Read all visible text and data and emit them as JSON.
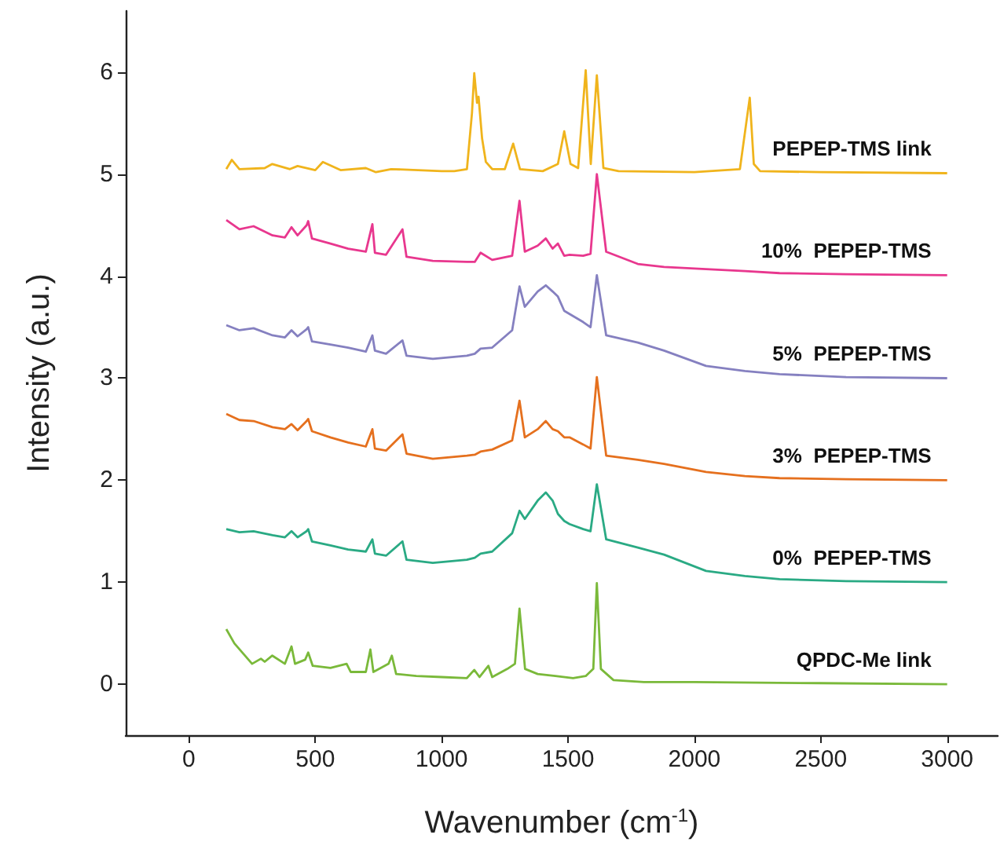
{
  "chart_data": {
    "type": "line",
    "xlabel": "Wavenumber (cm$^{-1}$)",
    "ylabel": "Intensity (a.u.)",
    "xlim": [
      -250,
      3200
    ],
    "xticks": [
      0,
      500,
      1000,
      1500,
      2000,
      2500,
      3000
    ],
    "ylim": [
      -0.5,
      6.6
    ],
    "yticks": [
      0,
      1,
      2,
      3,
      4,
      5,
      6
    ],
    "grid": false,
    "legend": false,
    "marker": "none",
    "series": [
      {
        "name": "PEPEP-TMS link",
        "color": "#f0b41c",
        "x": [
          148,
          170,
          200,
          300,
          330,
          400,
          430,
          500,
          530,
          600,
          700,
          740,
          800,
          1000,
          1050,
          1100,
          1120,
          1129,
          1140,
          1146,
          1160,
          1175,
          1200,
          1250,
          1283,
          1310,
          1400,
          1460,
          1485,
          1510,
          1540,
          1570,
          1590,
          1614,
          1640,
          1700,
          2000,
          2180,
          2205,
          2219,
          2235,
          2260,
          2500,
          3000
        ],
        "values": [
          5.05,
          5.14,
          5.05,
          5.06,
          5.1,
          5.05,
          5.08,
          5.04,
          5.12,
          5.04,
          5.06,
          5.02,
          5.05,
          5.03,
          5.03,
          5.05,
          5.6,
          5.99,
          5.7,
          5.76,
          5.35,
          5.12,
          5.05,
          5.05,
          5.3,
          5.05,
          5.03,
          5.1,
          5.42,
          5.1,
          5.06,
          6.02,
          5.1,
          5.97,
          5.06,
          5.03,
          5.02,
          5.05,
          5.5,
          5.75,
          5.1,
          5.03,
          5.02,
          5.01
        ]
      },
      {
        "name": "10%  PEPEP-TMS",
        "color": "#e8378e",
        "x": [
          148,
          200,
          256,
          331,
          380,
          406,
          430,
          466,
          472,
          487,
          560,
          630,
          700,
          726,
          736,
          780,
          845,
          861,
          965,
          1100,
          1131,
          1154,
          1200,
          1279,
          1308,
          1329,
          1380,
          1412,
          1439,
          1460,
          1485,
          1506,
          1560,
          1589,
          1614,
          1651,
          1776,
          1880,
          2046,
          2200,
          2337,
          2600,
          3000
        ],
        "values": [
          4.55,
          4.46,
          4.49,
          4.4,
          4.38,
          4.48,
          4.4,
          4.5,
          4.54,
          4.37,
          4.32,
          4.27,
          4.24,
          4.51,
          4.23,
          4.21,
          4.46,
          4.19,
          4.15,
          4.14,
          4.14,
          4.23,
          4.16,
          4.2,
          4.74,
          4.24,
          4.3,
          4.37,
          4.27,
          4.32,
          4.2,
          4.21,
          4.2,
          4.22,
          5.0,
          4.24,
          4.12,
          4.09,
          4.07,
          4.05,
          4.03,
          4.02,
          4.01
        ]
      },
      {
        "name": "5%  PEPEP-TMS",
        "color": "#8580c0",
        "x": [
          148,
          200,
          256,
          331,
          380,
          406,
          430,
          466,
          472,
          487,
          560,
          630,
          700,
          726,
          736,
          780,
          845,
          861,
          965,
          1100,
          1131,
          1154,
          1200,
          1279,
          1308,
          1329,
          1380,
          1412,
          1439,
          1460,
          1485,
          1506,
          1560,
          1589,
          1614,
          1651,
          1776,
          1880,
          2046,
          2200,
          2337,
          2600,
          3000
        ],
        "values": [
          3.52,
          3.47,
          3.49,
          3.42,
          3.4,
          3.47,
          3.41,
          3.48,
          3.5,
          3.36,
          3.33,
          3.3,
          3.26,
          3.42,
          3.27,
          3.24,
          3.37,
          3.22,
          3.19,
          3.22,
          3.24,
          3.29,
          3.3,
          3.47,
          3.9,
          3.7,
          3.85,
          3.91,
          3.85,
          3.8,
          3.66,
          3.63,
          3.55,
          3.5,
          4.01,
          3.42,
          3.35,
          3.27,
          3.12,
          3.07,
          3.04,
          3.01,
          3.0
        ]
      },
      {
        "name": "3%  PEPEP-TMS",
        "color": "#e5701e",
        "x": [
          148,
          200,
          256,
          331,
          380,
          406,
          430,
          466,
          472,
          487,
          560,
          630,
          700,
          726,
          736,
          780,
          845,
          861,
          965,
          1100,
          1131,
          1154,
          1200,
          1279,
          1308,
          1329,
          1380,
          1412,
          1439,
          1460,
          1485,
          1506,
          1560,
          1589,
          1614,
          1651,
          1776,
          1880,
          2046,
          2200,
          2337,
          2600,
          3000
        ],
        "values": [
          2.65,
          2.59,
          2.58,
          2.52,
          2.5,
          2.55,
          2.49,
          2.58,
          2.6,
          2.48,
          2.42,
          2.37,
          2.33,
          2.5,
          2.31,
          2.29,
          2.45,
          2.26,
          2.21,
          2.24,
          2.25,
          2.28,
          2.3,
          2.39,
          2.78,
          2.42,
          2.5,
          2.58,
          2.5,
          2.48,
          2.42,
          2.42,
          2.35,
          2.31,
          3.01,
          2.24,
          2.2,
          2.16,
          2.08,
          2.04,
          2.02,
          2.01,
          2.0
        ]
      },
      {
        "name": "0%  PEPEP-TMS",
        "color": "#2aaa84",
        "x": [
          148,
          200,
          256,
          331,
          380,
          406,
          430,
          466,
          472,
          487,
          560,
          630,
          700,
          726,
          736,
          780,
          845,
          861,
          965,
          1100,
          1131,
          1154,
          1200,
          1279,
          1308,
          1329,
          1380,
          1412,
          1439,
          1460,
          1485,
          1506,
          1560,
          1589,
          1614,
          1651,
          1776,
          1880,
          2046,
          2200,
          2337,
          2600,
          3000
        ],
        "values": [
          1.52,
          1.49,
          1.5,
          1.46,
          1.44,
          1.5,
          1.44,
          1.5,
          1.52,
          1.4,
          1.36,
          1.32,
          1.3,
          1.42,
          1.28,
          1.26,
          1.4,
          1.22,
          1.19,
          1.22,
          1.24,
          1.28,
          1.3,
          1.48,
          1.7,
          1.62,
          1.8,
          1.88,
          1.8,
          1.67,
          1.6,
          1.57,
          1.52,
          1.5,
          1.96,
          1.42,
          1.34,
          1.27,
          1.11,
          1.06,
          1.03,
          1.01,
          1.0
        ]
      },
      {
        "name": "QPDC-Me link",
        "color": "#7ab93a",
        "x": [
          148,
          180,
          250,
          285,
          300,
          330,
          380,
          406,
          420,
          460,
          472,
          490,
          560,
          624,
          640,
          700,
          718,
          730,
          790,
          803,
          820,
          900,
          1000,
          1100,
          1129,
          1150,
          1185,
          1200,
          1260,
          1290,
          1308,
          1330,
          1380,
          1450,
          1520,
          1570,
          1600,
          1614,
          1630,
          1680,
          1800,
          2000,
          2500,
          3000
        ],
        "values": [
          0.54,
          0.4,
          0.2,
          0.25,
          0.22,
          0.28,
          0.2,
          0.37,
          0.2,
          0.24,
          0.31,
          0.18,
          0.16,
          0.2,
          0.12,
          0.12,
          0.34,
          0.12,
          0.2,
          0.28,
          0.1,
          0.08,
          0.07,
          0.06,
          0.14,
          0.07,
          0.18,
          0.07,
          0.15,
          0.2,
          0.74,
          0.15,
          0.1,
          0.08,
          0.06,
          0.08,
          0.15,
          0.99,
          0.15,
          0.04,
          0.02,
          0.02,
          0.01,
          0.0
        ]
      }
    ]
  }
}
